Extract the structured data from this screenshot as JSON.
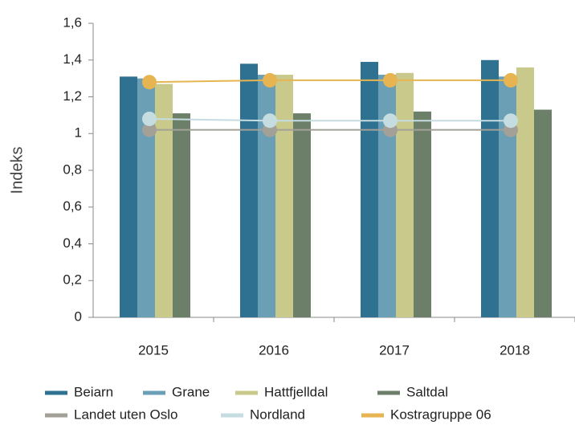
{
  "chart_data": {
    "type": "bar",
    "y_label": "Indeks",
    "categories": [
      "2015",
      "2016",
      "2017",
      "2018"
    ],
    "ylim": [
      0,
      1.6
    ],
    "yticks": [
      0,
      {
        "value": 0.2,
        "label": "0,2"
      },
      {
        "value": 0.4,
        "label": "0,4"
      },
      {
        "value": 0.6,
        "label": "0,6"
      },
      {
        "value": 0.8,
        "label": "0,8"
      },
      1,
      {
        "value": 1.2,
        "label": "1,2"
      },
      {
        "value": 1.4,
        "label": "1,4"
      },
      {
        "value": 1.6,
        "label": "1,6"
      }
    ],
    "series": [
      {
        "name": "Beiarn",
        "color": "#2e7191",
        "type": "bar",
        "values": [
          1.31,
          1.38,
          1.39,
          1.4
        ]
      },
      {
        "name": "Grane",
        "color": "#6a9fb5",
        "type": "bar",
        "values": [
          1.3,
          1.32,
          1.32,
          1.31
        ]
      },
      {
        "name": "Hattfjelldal",
        "color": "#c8c98a",
        "type": "bar",
        "values": [
          1.27,
          1.32,
          1.33,
          1.36
        ]
      },
      {
        "name": "Saltdal",
        "color": "#6b7f69",
        "type": "bar",
        "values": [
          1.11,
          1.11,
          1.12,
          1.13
        ]
      },
      {
        "name": "Landet uten Oslo",
        "color": "#a3a097",
        "type": "line",
        "values": [
          1.02,
          1.02,
          1.02,
          1.02
        ]
      },
      {
        "name": "Nordland",
        "color": "#c5dde1",
        "type": "line",
        "values": [
          1.08,
          1.07,
          1.07,
          1.07
        ]
      },
      {
        "name": "Kostragruppe 06",
        "color": "#e6b551",
        "type": "line",
        "values": [
          1.28,
          1.29,
          1.29,
          1.29
        ]
      }
    ]
  }
}
